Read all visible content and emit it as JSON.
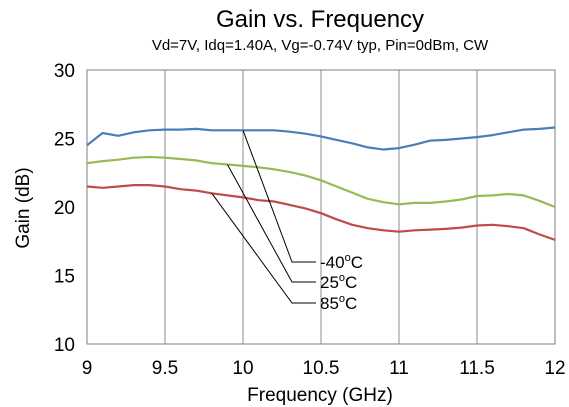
{
  "chart_data": {
    "type": "line",
    "title": "Gain vs. Frequency",
    "subtitle": "Vd=7V, Idq=1.40A, Vg=-0.74V typ, Pin=0dBm, CW",
    "xlabel": "Frequency (GHz)",
    "ylabel": "Gain (dB)",
    "xlim": [
      9,
      12
    ],
    "ylim": [
      10,
      30
    ],
    "xticks": [
      9,
      9.5,
      10,
      10.5,
      11,
      11.5,
      12
    ],
    "xtick_labels": [
      "9",
      "9.5",
      "10",
      "10.5",
      "11",
      "11.5",
      "12"
    ],
    "yticks": [
      10,
      15,
      20,
      25,
      30
    ],
    "ytick_labels": [
      "10",
      "15",
      "20",
      "25",
      "30"
    ],
    "grid": "vertical",
    "legend": "none",
    "series": [
      {
        "name": "-40°C",
        "color": "#4a7ebb",
        "x": [
          9.0,
          9.1,
          9.2,
          9.3,
          9.4,
          9.5,
          9.6,
          9.7,
          9.8,
          9.9,
          10.0,
          10.1,
          10.2,
          10.3,
          10.4,
          10.5,
          10.6,
          10.7,
          10.8,
          10.9,
          11.0,
          11.1,
          11.2,
          11.3,
          11.4,
          11.5,
          11.6,
          11.7,
          11.8,
          11.9,
          12.0
        ],
        "y": [
          24.5,
          25.4,
          25.2,
          25.45,
          25.6,
          25.65,
          25.65,
          25.7,
          25.6,
          25.6,
          25.6,
          25.6,
          25.6,
          25.5,
          25.35,
          25.15,
          24.9,
          24.65,
          24.35,
          24.2,
          24.3,
          24.55,
          24.85,
          24.9,
          25.0,
          25.1,
          25.25,
          25.45,
          25.65,
          25.7,
          25.8
        ]
      },
      {
        "name": "25°C",
        "color": "#98b954",
        "x": [
          9.0,
          9.1,
          9.2,
          9.3,
          9.4,
          9.5,
          9.6,
          9.7,
          9.8,
          9.9,
          10.0,
          10.1,
          10.2,
          10.3,
          10.4,
          10.5,
          10.6,
          10.7,
          10.8,
          10.9,
          11.0,
          11.1,
          11.2,
          11.3,
          11.4,
          11.5,
          11.6,
          11.7,
          11.8,
          11.9,
          12.0
        ],
        "y": [
          23.2,
          23.35,
          23.45,
          23.6,
          23.65,
          23.6,
          23.5,
          23.4,
          23.2,
          23.1,
          23.0,
          22.9,
          22.75,
          22.55,
          22.3,
          21.95,
          21.5,
          21.05,
          20.6,
          20.35,
          20.2,
          20.3,
          20.3,
          20.4,
          20.55,
          20.8,
          20.85,
          20.95,
          20.85,
          20.45,
          20.0
        ]
      },
      {
        "name": "85°C",
        "color": "#be4b48",
        "x": [
          9.0,
          9.1,
          9.2,
          9.3,
          9.4,
          9.5,
          9.6,
          9.7,
          9.8,
          9.9,
          10.0,
          10.1,
          10.2,
          10.3,
          10.4,
          10.5,
          10.6,
          10.7,
          10.8,
          10.9,
          11.0,
          11.1,
          11.2,
          11.3,
          11.4,
          11.5,
          11.6,
          11.7,
          11.8,
          11.9,
          12.0
        ],
        "y": [
          21.5,
          21.4,
          21.5,
          21.6,
          21.6,
          21.5,
          21.3,
          21.2,
          21.0,
          20.85,
          20.7,
          20.5,
          20.4,
          20.15,
          19.9,
          19.55,
          19.1,
          18.7,
          18.45,
          18.3,
          18.2,
          18.3,
          18.35,
          18.4,
          18.5,
          18.65,
          18.7,
          18.6,
          18.45,
          18.0,
          17.6
        ]
      }
    ],
    "annotations": [
      {
        "label": "-40",
        "sup": "o",
        "suffix": "C",
        "series": 0,
        "anchor_x": 10.0
      },
      {
        "label": "25",
        "sup": "o",
        "suffix": "C",
        "series": 1,
        "anchor_x": 9.9
      },
      {
        "label": "85",
        "sup": "o",
        "suffix": "C",
        "series": 2,
        "anchor_x": 9.8
      }
    ]
  }
}
